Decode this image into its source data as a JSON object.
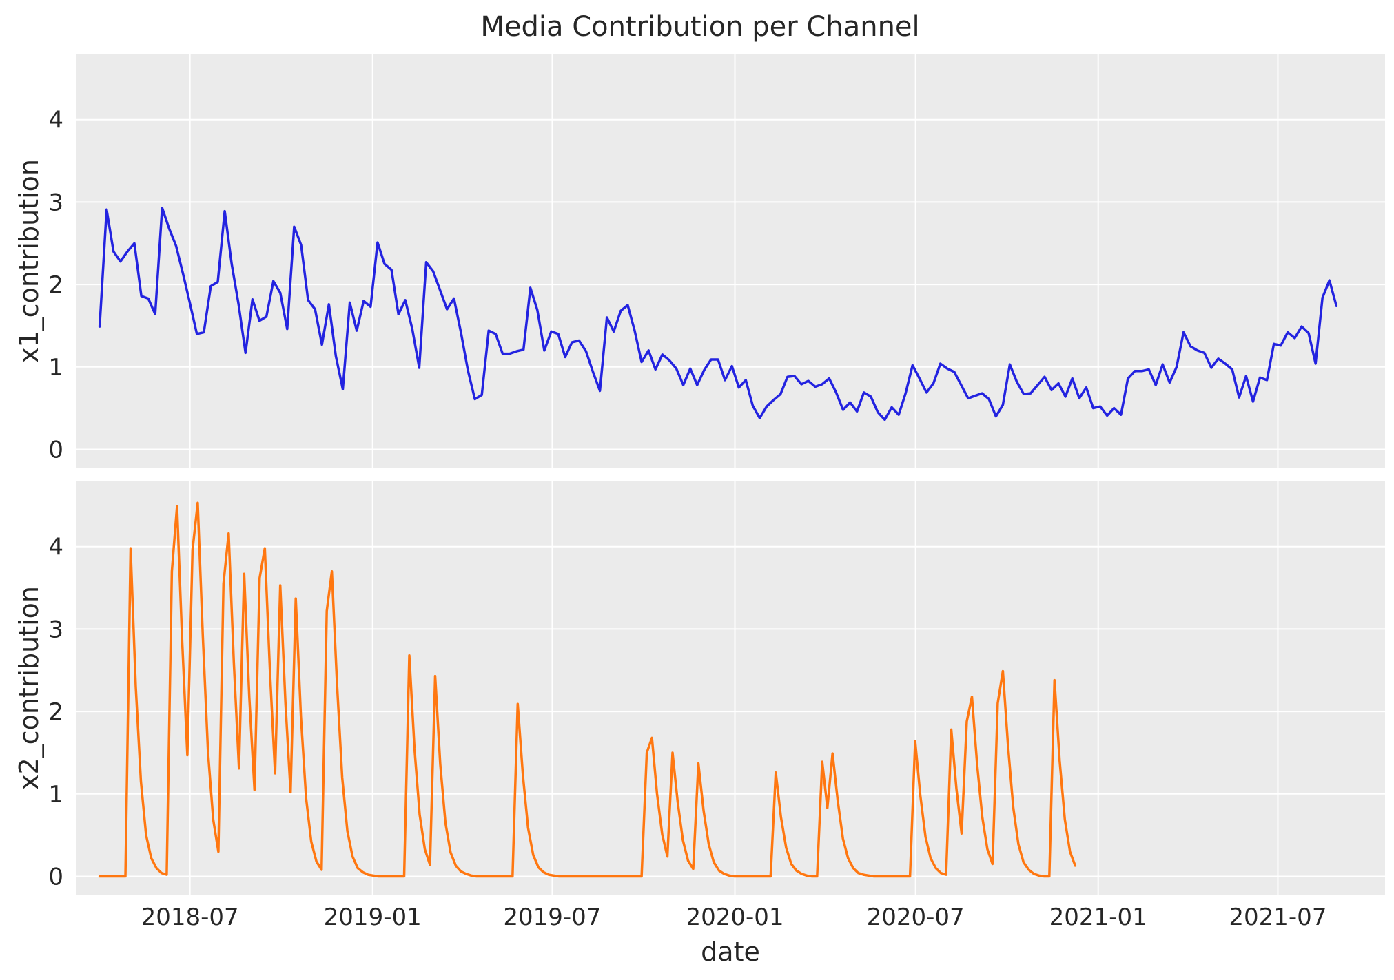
{
  "chart_data": {
    "type": "line",
    "title": "Media Contribution per Channel",
    "xlabel": "date",
    "x_ticks": [
      "2018-07",
      "2019-01",
      "2019-07",
      "2020-01",
      "2020-07",
      "2021-01",
      "2021-07"
    ],
    "y_ticks": [
      "0",
      "1",
      "2",
      "3",
      "4"
    ],
    "ylim": [
      -0.23,
      4.8
    ],
    "x_range": [
      "2018-03-08",
      "2021-10-17"
    ],
    "grid": true,
    "sharex": true,
    "sharey": true,
    "panels": [
      {
        "ylabel": "x1_contribution",
        "color": "#2323e0",
        "x_start": "2018-04-01",
        "x_step_days": 7,
        "values": [
          1.49,
          2.91,
          2.4,
          2.28,
          2.4,
          2.5,
          1.86,
          1.83,
          1.64,
          2.93,
          2.68,
          2.47,
          2.13,
          1.77,
          1.4,
          1.42,
          1.98,
          2.03,
          2.89,
          2.25,
          1.76,
          1.17,
          1.82,
          1.56,
          1.61,
          2.04,
          1.9,
          1.46,
          2.7,
          2.48,
          1.81,
          1.7,
          1.27,
          1.76,
          1.13,
          0.73,
          1.78,
          1.44,
          1.8,
          1.73,
          2.51,
          2.25,
          2.18,
          1.64,
          1.81,
          1.46,
          0.99,
          2.27,
          2.16,
          1.93,
          1.7,
          1.83,
          1.42,
          0.96,
          0.61,
          0.66,
          1.44,
          1.4,
          1.16,
          1.16,
          1.19,
          1.21,
          1.96,
          1.69,
          1.2,
          1.43,
          1.4,
          1.12,
          1.3,
          1.32,
          1.19,
          0.94,
          0.71,
          1.6,
          1.43,
          1.68,
          1.75,
          1.44,
          1.06,
          1.2,
          0.97,
          1.15,
          1.08,
          0.98,
          0.78,
          0.98,
          0.78,
          0.96,
          1.09,
          1.09,
          0.84,
          1.01,
          0.75,
          0.84,
          0.53,
          0.38,
          0.52,
          0.6,
          0.67,
          0.88,
          0.89,
          0.79,
          0.83,
          0.76,
          0.79,
          0.86,
          0.69,
          0.48,
          0.57,
          0.46,
          0.69,
          0.64,
          0.45,
          0.36,
          0.51,
          0.42,
          0.68,
          1.02,
          0.86,
          0.69,
          0.8,
          1.04,
          0.98,
          0.94,
          0.78,
          0.62,
          0.65,
          0.68,
          0.61,
          0.4,
          0.54,
          1.03,
          0.82,
          0.67,
          0.68,
          0.78,
          0.88,
          0.72,
          0.8,
          0.64,
          0.86,
          0.62,
          0.75,
          0.5,
          0.52,
          0.41,
          0.5,
          0.42,
          0.86,
          0.95,
          0.95,
          0.97,
          0.78,
          1.03,
          0.81,
          1.0,
          1.42,
          1.25,
          1.2,
          1.17,
          0.99,
          1.1,
          1.04,
          0.97,
          0.63,
          0.89,
          0.58,
          0.87,
          0.84,
          1.28,
          1.26,
          1.42,
          1.35,
          1.49,
          1.41,
          1.04,
          1.84,
          2.05,
          1.74
        ]
      },
      {
        "ylabel": "x2_contribution",
        "color": "#ff7710",
        "x_start": "2018-04-01",
        "x_step_days": 5.2,
        "values": [
          0.0,
          0.0,
          0.0,
          0.0,
          0.0,
          0.0,
          3.98,
          2.3,
          1.15,
          0.5,
          0.22,
          0.1,
          0.04,
          0.02,
          3.7,
          4.49,
          2.85,
          1.47,
          3.96,
          4.53,
          2.9,
          1.5,
          0.69,
          0.3,
          3.55,
          4.16,
          2.6,
          1.31,
          3.67,
          2.17,
          1.05,
          3.62,
          3.98,
          2.48,
          1.25,
          3.53,
          2.11,
          1.02,
          3.37,
          1.94,
          0.95,
          0.42,
          0.18,
          0.08,
          3.22,
          3.7,
          2.33,
          1.2,
          0.55,
          0.24,
          0.1,
          0.05,
          0.02,
          0.01,
          0.0,
          0.0,
          0.0,
          0.0,
          0.0,
          0.0,
          2.68,
          1.55,
          0.75,
          0.33,
          0.14,
          2.43,
          1.36,
          0.65,
          0.29,
          0.13,
          0.06,
          0.03,
          0.01,
          0.0,
          0.0,
          0.0,
          0.0,
          0.0,
          0.0,
          0.0,
          0.0,
          2.09,
          1.23,
          0.59,
          0.26,
          0.11,
          0.05,
          0.02,
          0.01,
          0.0,
          0.0,
          0.0,
          0.0,
          0.0,
          0.0,
          0.0,
          0.0,
          0.0,
          0.0,
          0.0,
          0.0,
          0.0,
          0.0,
          0.0,
          0.0,
          0.0,
          1.5,
          1.68,
          1.0,
          0.51,
          0.24,
          1.5,
          0.9,
          0.44,
          0.19,
          0.09,
          1.37,
          0.8,
          0.39,
          0.17,
          0.07,
          0.03,
          0.01,
          0.0,
          0.0,
          0.0,
          0.0,
          0.0,
          0.0,
          0.0,
          0.0,
          1.26,
          0.72,
          0.35,
          0.15,
          0.07,
          0.03,
          0.01,
          0.0,
          0.0,
          1.39,
          0.83,
          1.49,
          0.92,
          0.46,
          0.22,
          0.1,
          0.04,
          0.02,
          0.01,
          0.0,
          0.0,
          0.0,
          0.0,
          0.0,
          0.0,
          0.0,
          0.0,
          1.64,
          0.98,
          0.48,
          0.22,
          0.1,
          0.04,
          0.02,
          1.78,
          1.06,
          0.52,
          1.88,
          2.18,
          1.36,
          0.72,
          0.33,
          0.15,
          2.1,
          2.49,
          1.58,
          0.84,
          0.39,
          0.17,
          0.08,
          0.03,
          0.01,
          0.0,
          0.0,
          2.38,
          1.4,
          0.69,
          0.3,
          0.13
        ]
      }
    ]
  }
}
